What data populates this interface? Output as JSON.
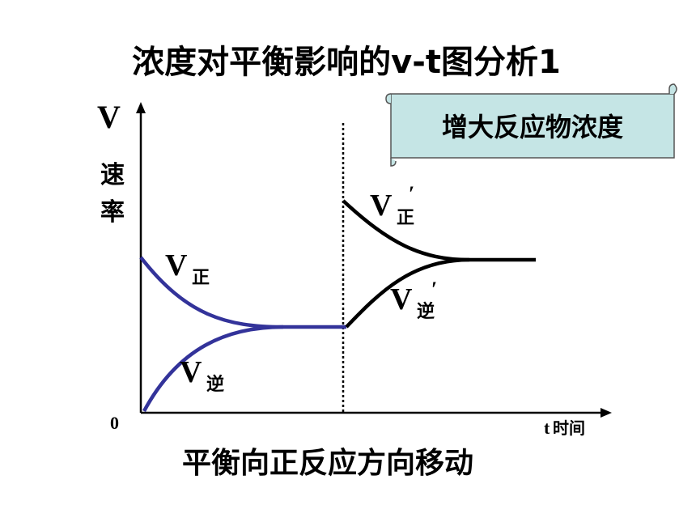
{
  "header": {
    "title": "浓度对平衡影响的v-t图分析1"
  },
  "banner": "增大反应物浓度",
  "axes": {
    "y_symbol": "V",
    "y_name": [
      "速",
      "率"
    ],
    "origin": "0",
    "x_symbol": "t",
    "x_name": "时间"
  },
  "labels": [
    {
      "symbol": "V",
      "subscript": "正"
    },
    {
      "symbol": "V",
      "subscript": "逆"
    },
    {
      "symbol": "V",
      "subscript": "正",
      "prime": "′"
    },
    {
      "symbol": "V",
      "subscript": "逆",
      "prime": "′"
    }
  ],
  "conclusion": "平衡向正反应方向移动"
}
